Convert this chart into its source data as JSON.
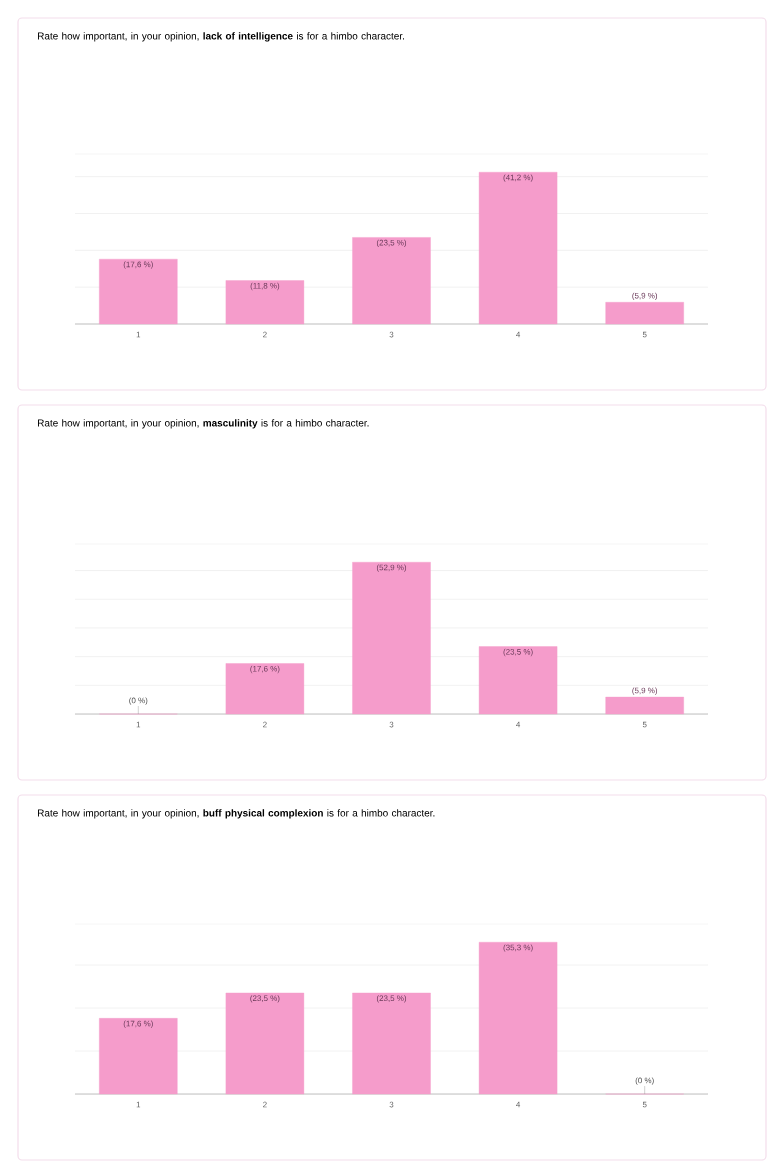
{
  "chart_data": [
    {
      "type": "bar",
      "title": "Rate how important, in your opinion, **lack of intelligence** is for a himbo character.",
      "categories": [
        "1",
        "2",
        "3",
        "4",
        "5"
      ],
      "values": [
        17.6,
        11.8,
        23.5,
        41.2,
        5.9
      ],
      "value_labels": [
        "(17,6 %)",
        "(11,8 %)",
        "(23,5 %)",
        "(41,2 %)",
        "(5,9 %)"
      ],
      "color": "#f59ccb",
      "grid": "y",
      "tick_labels": "x"
    },
    {
      "type": "bar",
      "title": "Rate how important, in your opinion, **masculinity** is for a himbo character.",
      "categories": [
        "1",
        "2",
        "3",
        "4",
        "5"
      ],
      "values": [
        0,
        17.6,
        52.9,
        23.5,
        5.9
      ],
      "value_labels": [
        "(0 %)",
        "(17,6 %)",
        "(52,9 %)",
        "(23,5 %)",
        "(5,9 %)"
      ],
      "color": "#f59ccb",
      "grid": "y",
      "tick_labels": "x"
    },
    {
      "type": "bar",
      "title": "Rate how important, in your opinion, **buff physical complexion** is for a himbo character.",
      "categories": [
        "1",
        "2",
        "3",
        "4",
        "5"
      ],
      "values": [
        17.6,
        23.5,
        23.5,
        35.3,
        0
      ],
      "value_labels": [
        "(17,6 %)",
        "(23,5 %)",
        "(23,5 %)",
        "(35,3 %)",
        "(0 %)"
      ],
      "color": "#f59ccb",
      "grid": "y",
      "tick_labels": "x"
    }
  ]
}
